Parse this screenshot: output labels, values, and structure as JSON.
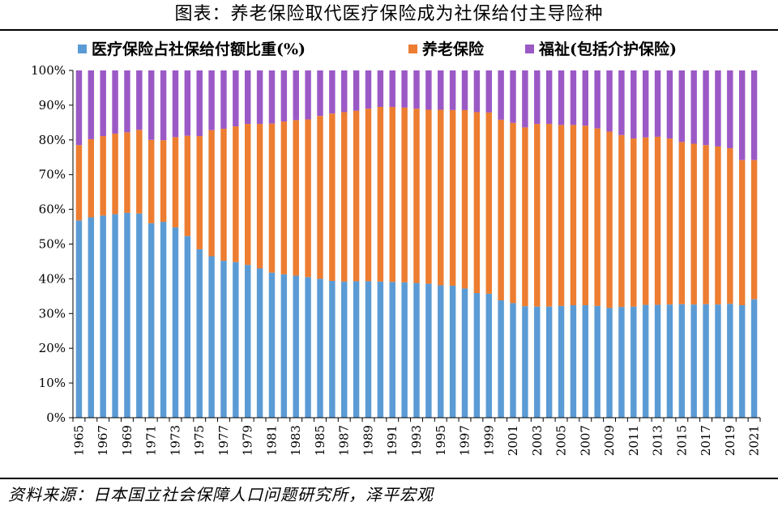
{
  "title": "图表：养老保险取代医疗保险成为社保给付主导险种",
  "source": "资料来源：日本国立社会保障人口问题研究所，泽平宏观",
  "chart_data": {
    "type": "bar",
    "stacked": true,
    "percent": true,
    "ylim": [
      0,
      100
    ],
    "yticks": [
      "0%",
      "10%",
      "20%",
      "30%",
      "40%",
      "50%",
      "60%",
      "70%",
      "80%",
      "90%",
      "100%"
    ],
    "legend_position": "top",
    "categories": [
      1965,
      1966,
      1967,
      1968,
      1969,
      1970,
      1971,
      1972,
      1973,
      1974,
      1975,
      1976,
      1977,
      1978,
      1979,
      1980,
      1981,
      1982,
      1983,
      1984,
      1985,
      1986,
      1987,
      1988,
      1989,
      1990,
      1991,
      1992,
      1993,
      1994,
      1995,
      1996,
      1997,
      1998,
      1999,
      2000,
      2001,
      2002,
      2003,
      2004,
      2005,
      2006,
      2007,
      2008,
      2009,
      2010,
      2011,
      2012,
      2013,
      2014,
      2015,
      2016,
      2017,
      2018,
      2019,
      2020,
      2021
    ],
    "xtick_labels": [
      "1965",
      "1967",
      "1969",
      "1971",
      "1973",
      "1975",
      "1977",
      "1979",
      "1981",
      "1983",
      "1985",
      "1987",
      "1989",
      "1991",
      "1993",
      "1995",
      "1997",
      "1999",
      "2001",
      "2003",
      "2005",
      "2007",
      "2009",
      "2011",
      "2013",
      "2015",
      "2017",
      "2019",
      "2021"
    ],
    "series": [
      {
        "name": "医疗保险占社保给付额比重(%)",
        "color": "#5B9BD5",
        "values": [
          56.8,
          57.7,
          58.2,
          58.6,
          59.0,
          58.8,
          56.0,
          56.4,
          54.8,
          52.3,
          48.5,
          46.5,
          45.2,
          44.8,
          44.0,
          43.0,
          41.8,
          41.3,
          40.9,
          40.5,
          40.0,
          39.4,
          39.2,
          39.3,
          39.3,
          39.2,
          39.1,
          39.0,
          38.8,
          38.6,
          38.1,
          38.0,
          37.2,
          35.9,
          35.7,
          33.8,
          33.0,
          32.1,
          32.0,
          32.0,
          32.2,
          32.4,
          32.4,
          32.2,
          31.6,
          31.9,
          32.0,
          32.5,
          32.5,
          32.6,
          32.7,
          32.6,
          32.7,
          32.6,
          32.8,
          32.4,
          34.1
        ]
      },
      {
        "name": "养老保险",
        "color": "#ED7D31",
        "values": [
          21.7,
          22.5,
          22.9,
          23.2,
          23.2,
          24.1,
          24.0,
          23.5,
          26.0,
          28.9,
          32.6,
          36.3,
          38.0,
          39.1,
          40.6,
          41.6,
          42.9,
          44.0,
          44.8,
          45.4,
          46.9,
          48.2,
          48.8,
          49.1,
          49.7,
          50.3,
          50.4,
          50.3,
          50.2,
          50.1,
          50.6,
          50.6,
          51.4,
          52.1,
          52.2,
          52.0,
          51.9,
          51.5,
          52.6,
          52.6,
          52.1,
          51.9,
          51.7,
          51.1,
          50.8,
          49.5,
          48.4,
          48.2,
          48.4,
          47.8,
          46.7,
          46.3,
          45.8,
          45.5,
          44.8,
          41.8,
          40.1
        ]
      },
      {
        "name": "福祉(包括介护保险)",
        "color": "#9B59C6",
        "values": [
          21.5,
          19.8,
          18.9,
          18.2,
          17.8,
          17.1,
          20.0,
          20.1,
          19.2,
          18.8,
          18.9,
          17.2,
          16.8,
          16.1,
          15.4,
          15.4,
          15.3,
          14.7,
          14.3,
          14.1,
          13.1,
          12.4,
          12.0,
          11.6,
          11.0,
          10.5,
          10.5,
          10.7,
          11.0,
          11.3,
          11.3,
          11.4,
          11.4,
          12.0,
          12.1,
          14.2,
          15.1,
          16.4,
          15.4,
          15.4,
          15.7,
          15.7,
          15.9,
          16.7,
          17.6,
          18.6,
          19.6,
          19.3,
          19.1,
          19.6,
          20.6,
          21.1,
          21.5,
          21.9,
          22.4,
          25.8,
          25.8
        ]
      }
    ]
  }
}
